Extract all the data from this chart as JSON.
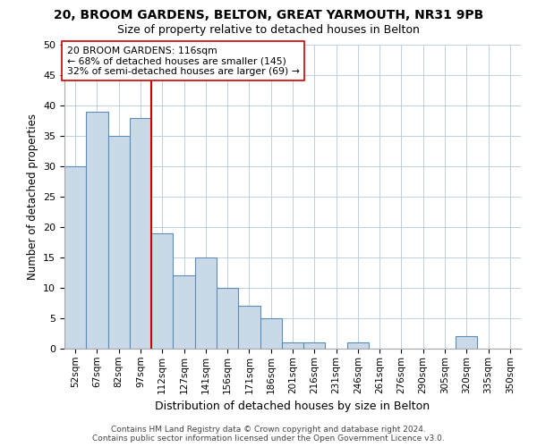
{
  "title": "20, BROOM GARDENS, BELTON, GREAT YARMOUTH, NR31 9PB",
  "subtitle": "Size of property relative to detached houses in Belton",
  "xlabel": "Distribution of detached houses by size in Belton",
  "ylabel": "Number of detached properties",
  "bar_labels": [
    "52sqm",
    "67sqm",
    "82sqm",
    "97sqm",
    "112sqm",
    "127sqm",
    "141sqm",
    "156sqm",
    "171sqm",
    "186sqm",
    "201sqm",
    "216sqm",
    "231sqm",
    "246sqm",
    "261sqm",
    "276sqm",
    "290sqm",
    "305sqm",
    "320sqm",
    "335sqm",
    "350sqm"
  ],
  "bar_values": [
    30,
    39,
    35,
    38,
    19,
    12,
    15,
    10,
    7,
    5,
    1,
    1,
    0,
    1,
    0,
    0,
    0,
    0,
    2,
    0,
    0
  ],
  "bar_color": "#c9d9e8",
  "bar_edge_color": "#5b8db8",
  "property_line_index": 4,
  "annotation_line1": "20 BROOM GARDENS: 116sqm",
  "annotation_line2": "← 68% of detached houses are smaller (145)",
  "annotation_line3": "32% of semi-detached houses are larger (69) →",
  "red_line_color": "#cc0000",
  "annotation_box_color": "#ffffff",
  "annotation_box_edge": "#cc0000",
  "ylim": [
    0,
    50
  ],
  "yticks": [
    0,
    5,
    10,
    15,
    20,
    25,
    30,
    35,
    40,
    45,
    50
  ],
  "footer1": "Contains HM Land Registry data © Crown copyright and database right 2024.",
  "footer2": "Contains public sector information licensed under the Open Government Licence v3.0.",
  "bg_color": "#ffffff",
  "grid_color": "#c0cfe0"
}
